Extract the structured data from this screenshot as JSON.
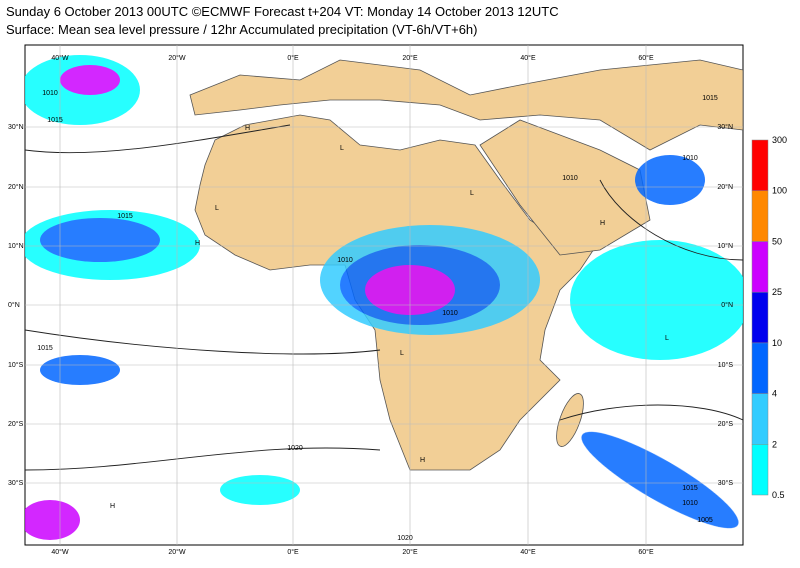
{
  "header": {
    "title": "Sunday 6 October 2013 00UTC ©ECMWF Forecast t+204 VT: Monday 14 October 2013 12UTC",
    "subtitle": "Surface: Mean sea level pressure / 12hr Accumulated precipitation (VT-6h/VT+6h)"
  },
  "map": {
    "lon_labels": [
      "40°W",
      "20°W",
      "0°E",
      "20°E",
      "40°E",
      "60°E"
    ],
    "lat_labels": [
      "30°N",
      "20°N",
      "10°N",
      "0°N",
      "10°S",
      "20°S",
      "30°S"
    ],
    "isobar_labels": [
      "1010",
      "1015",
      "1015",
      "1010",
      "1010",
      "1010",
      "1010",
      "1015",
      "1020",
      "1015",
      "1015",
      "1010",
      "1005",
      "1020"
    ],
    "pressure_centers": [
      "H",
      "H",
      "L",
      "L",
      "L",
      "H",
      "H",
      "L",
      "H",
      "L"
    ]
  },
  "legend": {
    "levels": [
      0.5,
      2,
      4,
      10,
      25,
      50,
      100,
      300
    ],
    "colors": [
      "#00ffff",
      "#33ccff",
      "#0066ff",
      "#0000ee",
      "#cc00ff",
      "#ff8800",
      "#ff0000"
    ]
  }
}
